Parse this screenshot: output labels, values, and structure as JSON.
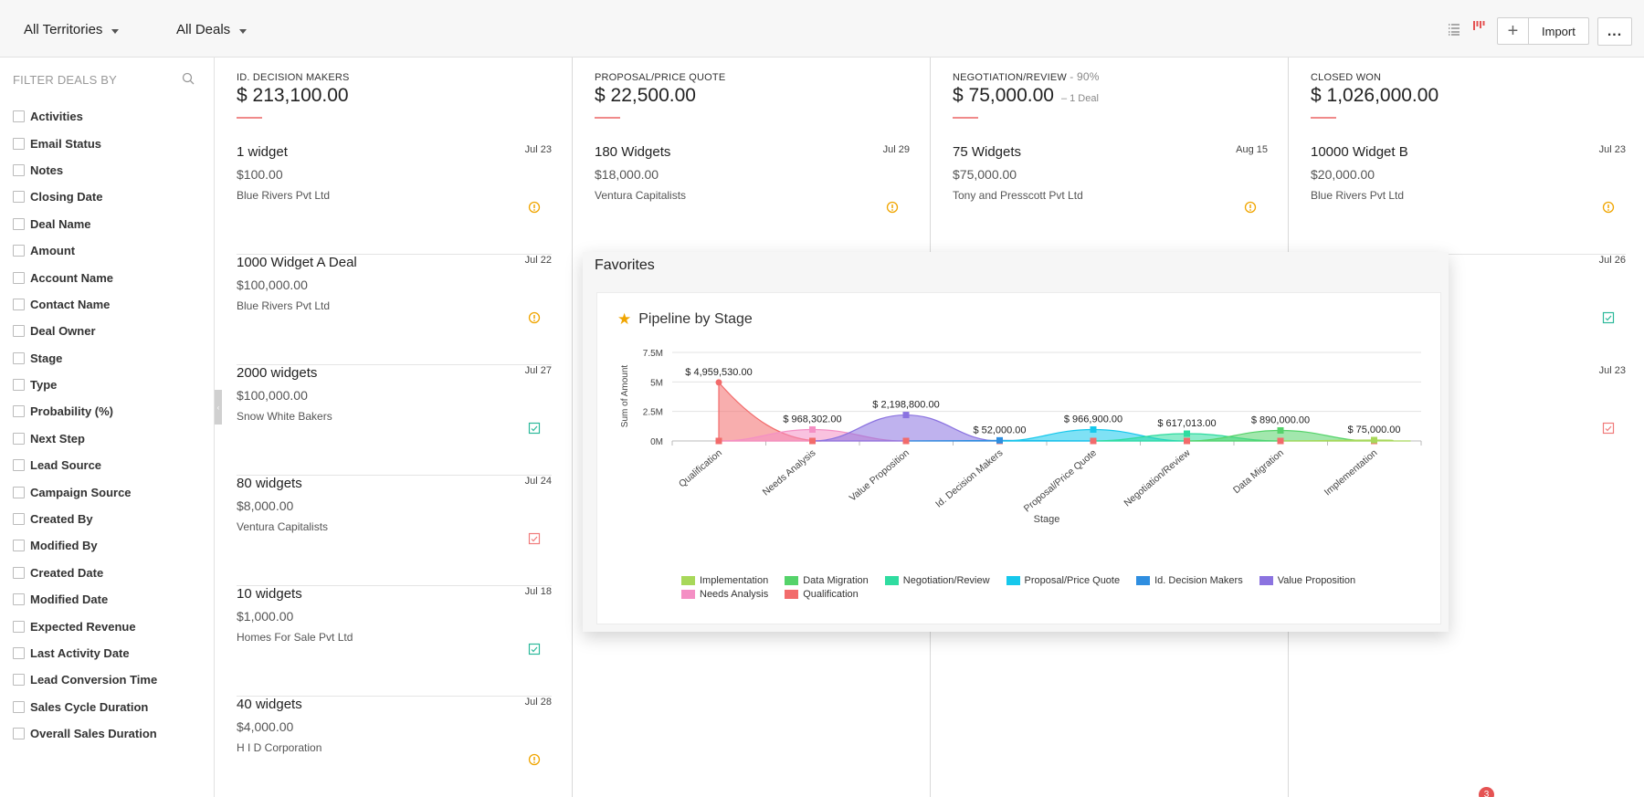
{
  "topbar": {
    "territory_label": "All Territories",
    "deals_label": "All Deals",
    "import_label": "Import",
    "plus_label": "+",
    "more_label": "..."
  },
  "sidebar": {
    "title": "FILTER DEALS BY",
    "filters": [
      "Activities",
      "Email Status",
      "Notes",
      "Closing Date",
      "Deal Name",
      "Amount",
      "Account Name",
      "Contact Name",
      "Deal Owner",
      "Stage",
      "Type",
      "Probability (%)",
      "Next Step",
      "Lead Source",
      "Campaign Source",
      "Created By",
      "Modified By",
      "Created Date",
      "Modified Date",
      "Expected Revenue",
      "Last Activity Date",
      "Lead Conversion Time",
      "Sales Cycle Duration",
      "Overall Sales Duration"
    ]
  },
  "columns": [
    {
      "name": "ID. DECISION MAKERS",
      "percent": "",
      "total": "$ 213,100.00",
      "sub": "",
      "cards": [
        {
          "title": "1 widget",
          "date": "Jul 23",
          "amount": "$100.00",
          "account": "Blue Rivers Pvt Ltd",
          "icon": "alert-icon"
        },
        {
          "title": "1000 Widget A Deal",
          "date": "Jul 22",
          "amount": "$100,000.00",
          "account": "Blue Rivers Pvt Ltd",
          "icon": "alert-icon"
        },
        {
          "title": "2000 widgets",
          "date": "Jul 27",
          "amount": "$100,000.00",
          "account": "Snow White Bakers",
          "icon": "task-check-icon"
        },
        {
          "title": "80 widgets",
          "date": "Jul 24",
          "amount": "$8,000.00",
          "account": "Ventura Capitalists",
          "icon": "task-overdue-icon"
        },
        {
          "title": "10 widgets",
          "date": "Jul 18",
          "amount": "$1,000.00",
          "account": "Homes For Sale Pvt Ltd",
          "icon": "task-check-icon"
        },
        {
          "title": "40 widgets",
          "date": "Jul 28",
          "amount": "$4,000.00",
          "account": "H I D Corporation",
          "icon": "alert-icon"
        }
      ]
    },
    {
      "name": "PROPOSAL/PRICE QUOTE",
      "percent": "",
      "total": "$ 22,500.00",
      "sub": "",
      "cards": [
        {
          "title": "180 Widgets",
          "date": "Jul 29",
          "amount": "$18,000.00",
          "account": "Ventura Capitalists",
          "icon": "alert-icon"
        }
      ]
    },
    {
      "name": "NEGOTIATION/REVIEW",
      "percent": "- 90%",
      "total": "$ 75,000.00",
      "sub": "– 1 Deal",
      "cards": [
        {
          "title": "75 Widgets",
          "date": "Aug 15",
          "amount": "$75,000.00",
          "account": "Tony and Presscott Pvt Ltd",
          "icon": "alert-icon"
        }
      ]
    },
    {
      "name": "CLOSED WON",
      "percent": "",
      "total": "$ 1,026,000.00",
      "sub": "",
      "cards": [
        {
          "title": "10000 Widget B",
          "date": "Jul 23",
          "amount": "$20,000.00",
          "account": "Blue Rivers Pvt Ltd",
          "icon": "alert-icon"
        }
      ],
      "hidden_card_dates": [
        "Jul 26",
        "Jul 23"
      ]
    }
  ],
  "favorites": {
    "title": "Favorites",
    "chart_title": "Pipeline by Stage"
  },
  "notification_count": "3",
  "colors": {
    "accent_red": "#f08a8a",
    "alert_orange": "#f0a500",
    "task_green": "#2bb89a",
    "task_red": "#f07a7a"
  },
  "chart_data": {
    "type": "area",
    "title": "Pipeline by Stage",
    "xlabel": "Stage",
    "ylabel": "Sum of Amount",
    "categories": [
      "Qualification",
      "Needs Analysis",
      "Value Proposition",
      "Id. Decision Makers",
      "Proposal/Price Quote",
      "Negotiation/Review",
      "Data Migration",
      "Implementation"
    ],
    "ylim": [
      0,
      7500000
    ],
    "yticks": [
      {
        "value": 0,
        "label": "0M"
      },
      {
        "value": 2500000,
        "label": "2.5M"
      },
      {
        "value": 5000000,
        "label": "5M"
      },
      {
        "value": 7500000,
        "label": "7.5M"
      }
    ],
    "grid": true,
    "legend_position": "bottom",
    "series": [
      {
        "name": "Qualification",
        "color": "#f26b6b",
        "index": 0,
        "value": 4959530,
        "label": "$ 4,959,530.00"
      },
      {
        "name": "Needs Analysis",
        "color": "#f48fc4",
        "index": 1,
        "value": 968302,
        "label": "$ 968,302.00"
      },
      {
        "name": "Value Proposition",
        "color": "#8b73e0",
        "index": 2,
        "value": 2198800,
        "label": "$ 2,198,800.00"
      },
      {
        "name": "Id. Decision Makers",
        "color": "#2f8ee0",
        "index": 3,
        "value": 52000,
        "label": "$ 52,000.00"
      },
      {
        "name": "Proposal/Price Quote",
        "color": "#16c8ec",
        "index": 4,
        "value": 966900,
        "label": "$ 966,900.00"
      },
      {
        "name": "Negotiation/Review",
        "color": "#2fdca0",
        "index": 5,
        "value": 617013,
        "label": "$ 617,013.00"
      },
      {
        "name": "Data Migration",
        "color": "#55d36a",
        "index": 6,
        "value": 890000,
        "label": "$ 890,000.00"
      },
      {
        "name": "Implementation",
        "color": "#a8d85a",
        "index": 7,
        "value": 75000,
        "label": "$ 75,000.00"
      }
    ],
    "legend_order": [
      "Implementation",
      "Data Migration",
      "Negotiation/Review",
      "Proposal/Price Quote",
      "Id. Decision Makers",
      "Value Proposition",
      "Needs Analysis",
      "Qualification"
    ]
  }
}
